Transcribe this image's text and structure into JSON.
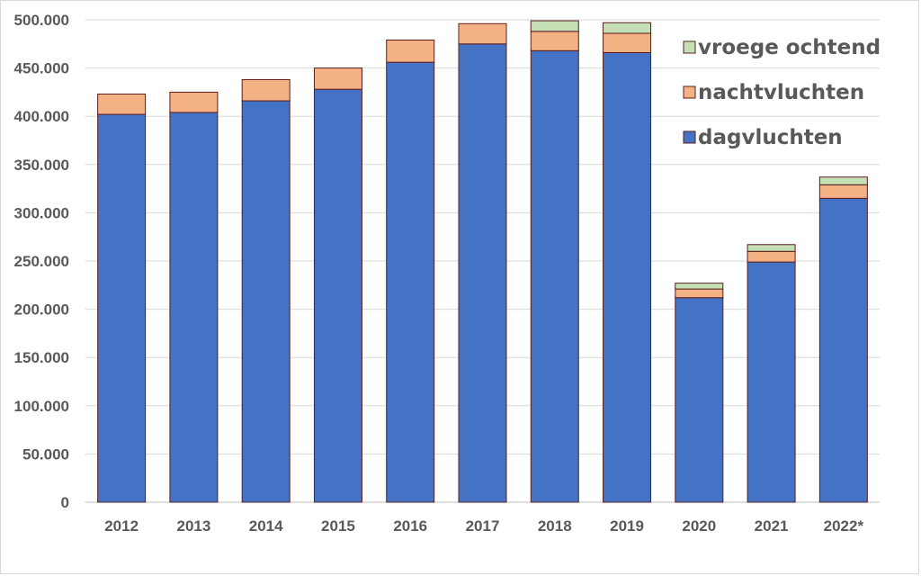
{
  "chart_data": {
    "type": "bar",
    "stacked": true,
    "categories": [
      "2012",
      "2013",
      "2014",
      "2015",
      "2016",
      "2017",
      "2018",
      "2019",
      "2020",
      "2021",
      "2022*"
    ],
    "series": [
      {
        "name": "dagvluchten",
        "color": "#4472C4",
        "values": [
          402000,
          404000,
          416000,
          428000,
          456000,
          475000,
          468000,
          466000,
          212000,
          249000,
          315000
        ]
      },
      {
        "name": "nachtvluchten",
        "color": "#F4B183",
        "values": [
          21000,
          21000,
          22000,
          22000,
          23000,
          21000,
          20000,
          20000,
          9000,
          11000,
          14000
        ]
      },
      {
        "name": "vroege ochtend",
        "color": "#C5E0B4",
        "values": [
          0,
          0,
          0,
          0,
          0,
          0,
          11000,
          11000,
          6000,
          7000,
          8000
        ]
      }
    ],
    "yticks": [
      "0",
      "50.000",
      "100.000",
      "150.000",
      "200.000",
      "250.000",
      "300.000",
      "350.000",
      "400.000",
      "450.000",
      "500.000"
    ],
    "ylim": [
      0,
      500000
    ],
    "grid": true,
    "legend": {
      "placement": "top-right",
      "order": [
        "vroege ochtend",
        "nachtvluchten",
        "dagvluchten"
      ]
    }
  }
}
